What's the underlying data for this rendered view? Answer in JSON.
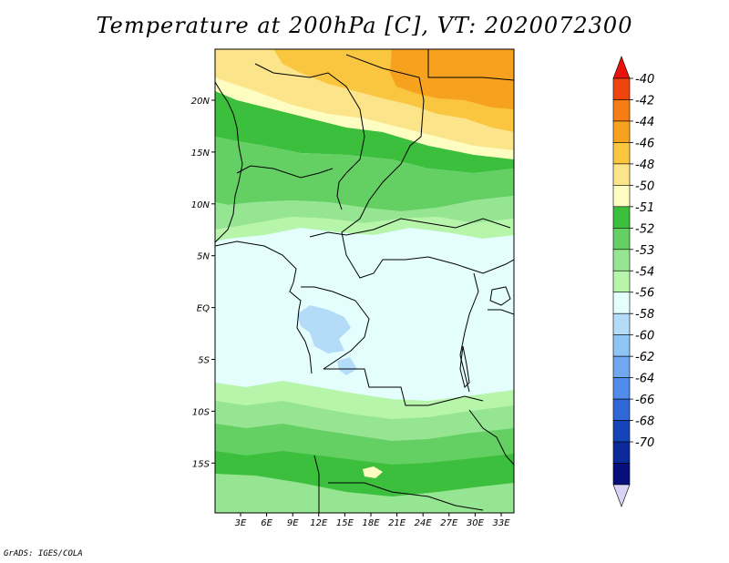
{
  "title": "Temperature at 200hPa [C], VT: 2020072300",
  "credit": "GrADS: IGES/COLA",
  "map": {
    "lat_ticks": [
      "20N",
      "15N",
      "10N",
      "5N",
      "EQ",
      "5S",
      "10S",
      "15S"
    ],
    "lon_ticks": [
      "3E",
      "6E",
      "9E",
      "12E",
      "15E",
      "18E",
      "21E",
      "24E",
      "27E",
      "30E",
      "33E"
    ]
  },
  "colorbar": {
    "labels": [
      "-40",
      "-42",
      "-44",
      "-46",
      "-48",
      "-50",
      "-51",
      "-52",
      "-53",
      "-54",
      "-56",
      "-58",
      "-60",
      "-62",
      "-64",
      "-66",
      "-68",
      "-70"
    ],
    "colors": [
      "#e8140b",
      "#f0440f",
      "#f57d14",
      "#f7a21f",
      "#fac640",
      "#fce48a",
      "#fdfdc2",
      "#3cbf3c",
      "#64d064",
      "#96e592",
      "#b6f5aa",
      "#e4fefe",
      "#b4dcf8",
      "#8ec5f5",
      "#6fa8f0",
      "#4f8ceb",
      "#2f67d6",
      "#1445b8",
      "#0a2a9a",
      "#07107a",
      "#d8d4f5"
    ]
  },
  "colors": {
    "background": "#ffffff",
    "border": "#000000",
    "lightest_cyan": "#e4fefe"
  }
}
